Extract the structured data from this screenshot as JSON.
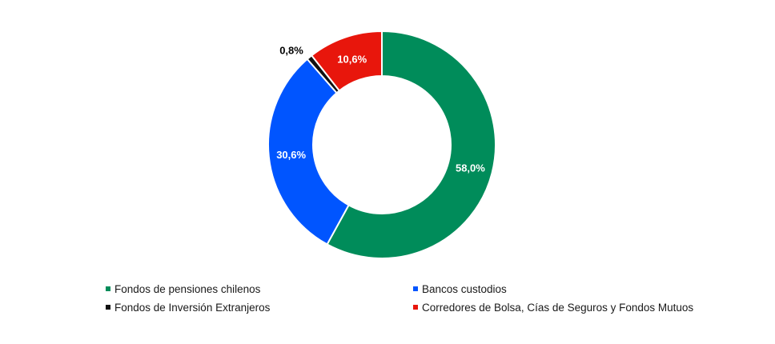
{
  "chart_data": {
    "type": "pie",
    "variant": "donut",
    "title": "",
    "legend_position": "bottom",
    "slices": [
      {
        "name": "Fondos de pensiones chilenos",
        "value": 58.0,
        "label": "58,0%",
        "color": "#008C5A",
        "label_color": "#ffffff"
      },
      {
        "name": "Bancos custodios",
        "value": 30.6,
        "label": "30,6%",
        "color": "#0055FF",
        "label_color": "#ffffff"
      },
      {
        "name": "Fondos de Inversión Extranjeros",
        "value": 0.8,
        "label": "0,8%",
        "color": "#111111",
        "label_color": "#000000"
      },
      {
        "name": "Corredores de Bolsa, Cías de Seguros y Fondos Mutuos",
        "value": 10.6,
        "label": "10,6%",
        "color": "#E8160C",
        "label_color": "#ffffff"
      }
    ]
  }
}
